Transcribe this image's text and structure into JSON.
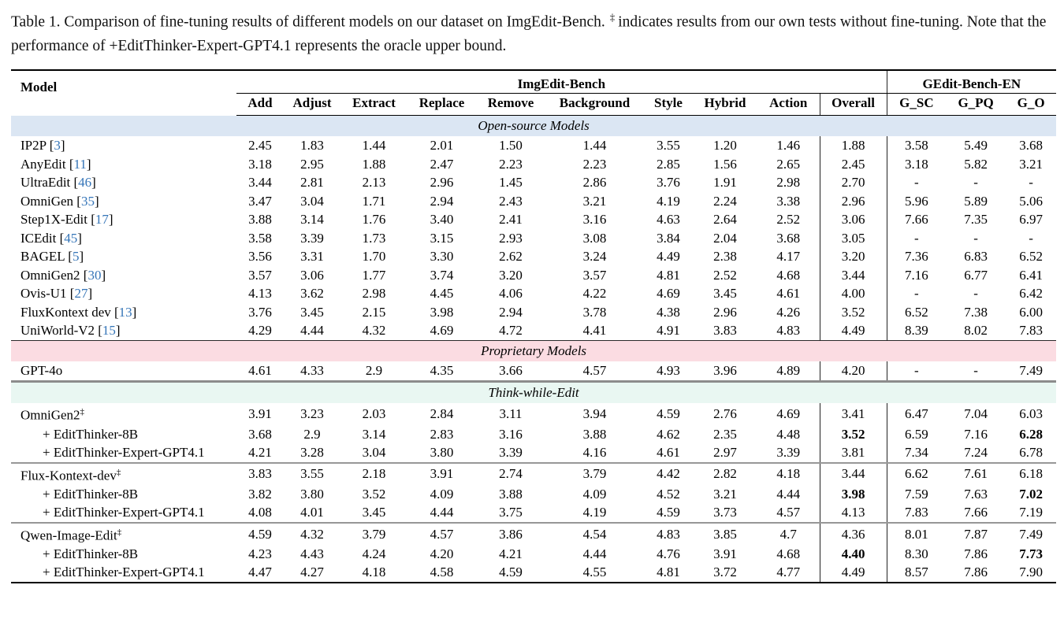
{
  "caption": {
    "part1": "Table 1.  Comparison of fine-tuning results of different models on our dataset on ImgEdit-Bench.",
    "sup": "‡",
    "part2": "indicates results from our own tests without fine-tuning. Note that the performance of +EditThinker-Expert-GPT4.1 represents the oracle upper bound."
  },
  "table": {
    "col_model": "Model",
    "group1": "ImgEdit-Bench",
    "group2": "GEdit-Bench-EN",
    "subheaders": [
      "Add",
      "Adjust",
      "Extract",
      "Replace",
      "Remove",
      "Background",
      "Style",
      "Hybrid",
      "Action",
      "Overall",
      "G_SC",
      "G_PQ",
      "G_O"
    ],
    "citation_color": "#3575b8",
    "sections": [
      {
        "title": "Open-source Models",
        "bg": "#dbe6f3",
        "groups": [
          [
            {
              "name": "IP2P",
              "cite": "3",
              "values": [
                "2.45",
                "1.83",
                "1.44",
                "2.01",
                "1.50",
                "1.44",
                "3.55",
                "1.20",
                "1.46",
                "1.88",
                "3.58",
                "5.49",
                "3.68"
              ]
            },
            {
              "name": "AnyEdit",
              "cite": "11",
              "values": [
                "3.18",
                "2.95",
                "1.88",
                "2.47",
                "2.23",
                "2.23",
                "2.85",
                "1.56",
                "2.65",
                "2.45",
                "3.18",
                "5.82",
                "3.21"
              ]
            },
            {
              "name": "UltraEdit",
              "cite": "46",
              "values": [
                "3.44",
                "2.81",
                "2.13",
                "2.96",
                "1.45",
                "2.86",
                "3.76",
                "1.91",
                "2.98",
                "2.70",
                "-",
                "-",
                "-"
              ]
            },
            {
              "name": "OmniGen",
              "cite": "35",
              "values": [
                "3.47",
                "3.04",
                "1.71",
                "2.94",
                "2.43",
                "3.21",
                "4.19",
                "2.24",
                "3.38",
                "2.96",
                "5.96",
                "5.89",
                "5.06"
              ]
            },
            {
              "name": "Step1X-Edit",
              "cite": "17",
              "values": [
                "3.88",
                "3.14",
                "1.76",
                "3.40",
                "2.41",
                "3.16",
                "4.63",
                "2.64",
                "2.52",
                "3.06",
                "7.66",
                "7.35",
                "6.97"
              ]
            },
            {
              "name": "ICEdit",
              "cite": "45",
              "values": [
                "3.58",
                "3.39",
                "1.73",
                "3.15",
                "2.93",
                "3.08",
                "3.84",
                "2.04",
                "3.68",
                "3.05",
                "-",
                "-",
                "-"
              ]
            },
            {
              "name": "BAGEL",
              "cite": "5",
              "values": [
                "3.56",
                "3.31",
                "1.70",
                "3.30",
                "2.62",
                "3.24",
                "4.49",
                "2.38",
                "4.17",
                "3.20",
                "7.36",
                "6.83",
                "6.52"
              ]
            },
            {
              "name": "OmniGen2",
              "cite": "30",
              "values": [
                "3.57",
                "3.06",
                "1.77",
                "3.74",
                "3.20",
                "3.57",
                "4.81",
                "2.52",
                "4.68",
                "3.44",
                "7.16",
                "6.77",
                "6.41"
              ]
            },
            {
              "name": "Ovis-U1",
              "cite": "27",
              "values": [
                "4.13",
                "3.62",
                "2.98",
                "4.45",
                "4.06",
                "4.22",
                "4.69",
                "3.45",
                "4.61",
                "4.00",
                "-",
                "-",
                "6.42"
              ]
            },
            {
              "name": "FluxKontext dev",
              "cite": "13",
              "values": [
                "3.76",
                "3.45",
                "2.15",
                "3.98",
                "2.94",
                "3.78",
                "4.38",
                "2.96",
                "4.26",
                "3.52",
                "6.52",
                "7.38",
                "6.00"
              ]
            },
            {
              "name": "UniWorld-V2",
              "cite": "15",
              "values": [
                "4.29",
                "4.44",
                "4.32",
                "4.69",
                "4.72",
                "4.41",
                "4.91",
                "3.83",
                "4.83",
                "4.49",
                "8.39",
                "8.02",
                "7.83"
              ]
            }
          ]
        ]
      },
      {
        "title": "Proprietary Models",
        "bg": "#fbdce2",
        "groups": [
          [
            {
              "name": "GPT-4o",
              "values": [
                "4.61",
                "4.33",
                "2.9",
                "4.35",
                "3.66",
                "4.57",
                "4.93",
                "3.96",
                "4.89",
                "4.20",
                "-",
                "-",
                "7.49"
              ]
            }
          ]
        ]
      },
      {
        "title": "Think-while-Edit",
        "bg": "#e9f7f2",
        "groups": [
          [
            {
              "name": "OmniGen2",
              "sup": true,
              "values": [
                "3.91",
                "3.23",
                "2.03",
                "2.84",
                "3.11",
                "3.94",
                "4.59",
                "2.76",
                "4.69",
                "3.41",
                "6.47",
                "7.04",
                "6.03"
              ]
            },
            {
              "name": "+ EditThinker-8B",
              "indent": true,
              "values": [
                "3.68",
                "2.9",
                "3.14",
                "2.83",
                "3.16",
                "3.88",
                "4.62",
                "2.35",
                "4.48",
                "3.52",
                "6.59",
                "7.16",
                "6.28"
              ],
              "bold": [
                9,
                12
              ]
            },
            {
              "name": "+ EditThinker-Expert-GPT4.1",
              "indent": true,
              "values": [
                "4.21",
                "3.28",
                "3.04",
                "3.80",
                "3.39",
                "4.16",
                "4.61",
                "2.97",
                "3.39",
                "3.81",
                "7.34",
                "7.24",
                "6.78"
              ]
            }
          ],
          [
            {
              "name": "Flux-Kontext-dev",
              "sup": true,
              "values": [
                "3.83",
                "3.55",
                "2.18",
                "3.91",
                "2.74",
                "3.79",
                "4.42",
                "2.82",
                "4.18",
                "3.44",
                "6.62",
                "7.61",
                "6.18"
              ]
            },
            {
              "name": "+ EditThinker-8B",
              "indent": true,
              "values": [
                "3.82",
                "3.80",
                "3.52",
                "4.09",
                "3.88",
                "4.09",
                "4.52",
                "3.21",
                "4.44",
                "3.98",
                "7.59",
                "7.63",
                "7.02"
              ],
              "bold": [
                9,
                12
              ]
            },
            {
              "name": "+ EditThinker-Expert-GPT4.1",
              "indent": true,
              "values": [
                "4.08",
                "4.01",
                "3.45",
                "4.44",
                "3.75",
                "4.19",
                "4.59",
                "3.73",
                "4.57",
                "4.13",
                "7.83",
                "7.66",
                "7.19"
              ]
            }
          ],
          [
            {
              "name": "Qwen-Image-Edit",
              "sup": true,
              "values": [
                "4.59",
                "4.32",
                "3.79",
                "4.57",
                "3.86",
                "4.54",
                "4.83",
                "3.85",
                "4.7",
                "4.36",
                "8.01",
                "7.87",
                "7.49"
              ]
            },
            {
              "name": "+ EditThinker-8B",
              "indent": true,
              "values": [
                "4.23",
                "4.43",
                "4.24",
                "4.20",
                "4.21",
                "4.44",
                "4.76",
                "3.91",
                "4.68",
                "4.40",
                "8.30",
                "7.86",
                "7.73"
              ],
              "bold": [
                9,
                12
              ]
            },
            {
              "name": "+ EditThinker-Expert-GPT4.1",
              "indent": true,
              "values": [
                "4.47",
                "4.27",
                "4.18",
                "4.58",
                "4.59",
                "4.55",
                "4.81",
                "3.72",
                "4.77",
                "4.49",
                "8.57",
                "7.86",
                "7.90"
              ]
            }
          ]
        ]
      }
    ]
  }
}
